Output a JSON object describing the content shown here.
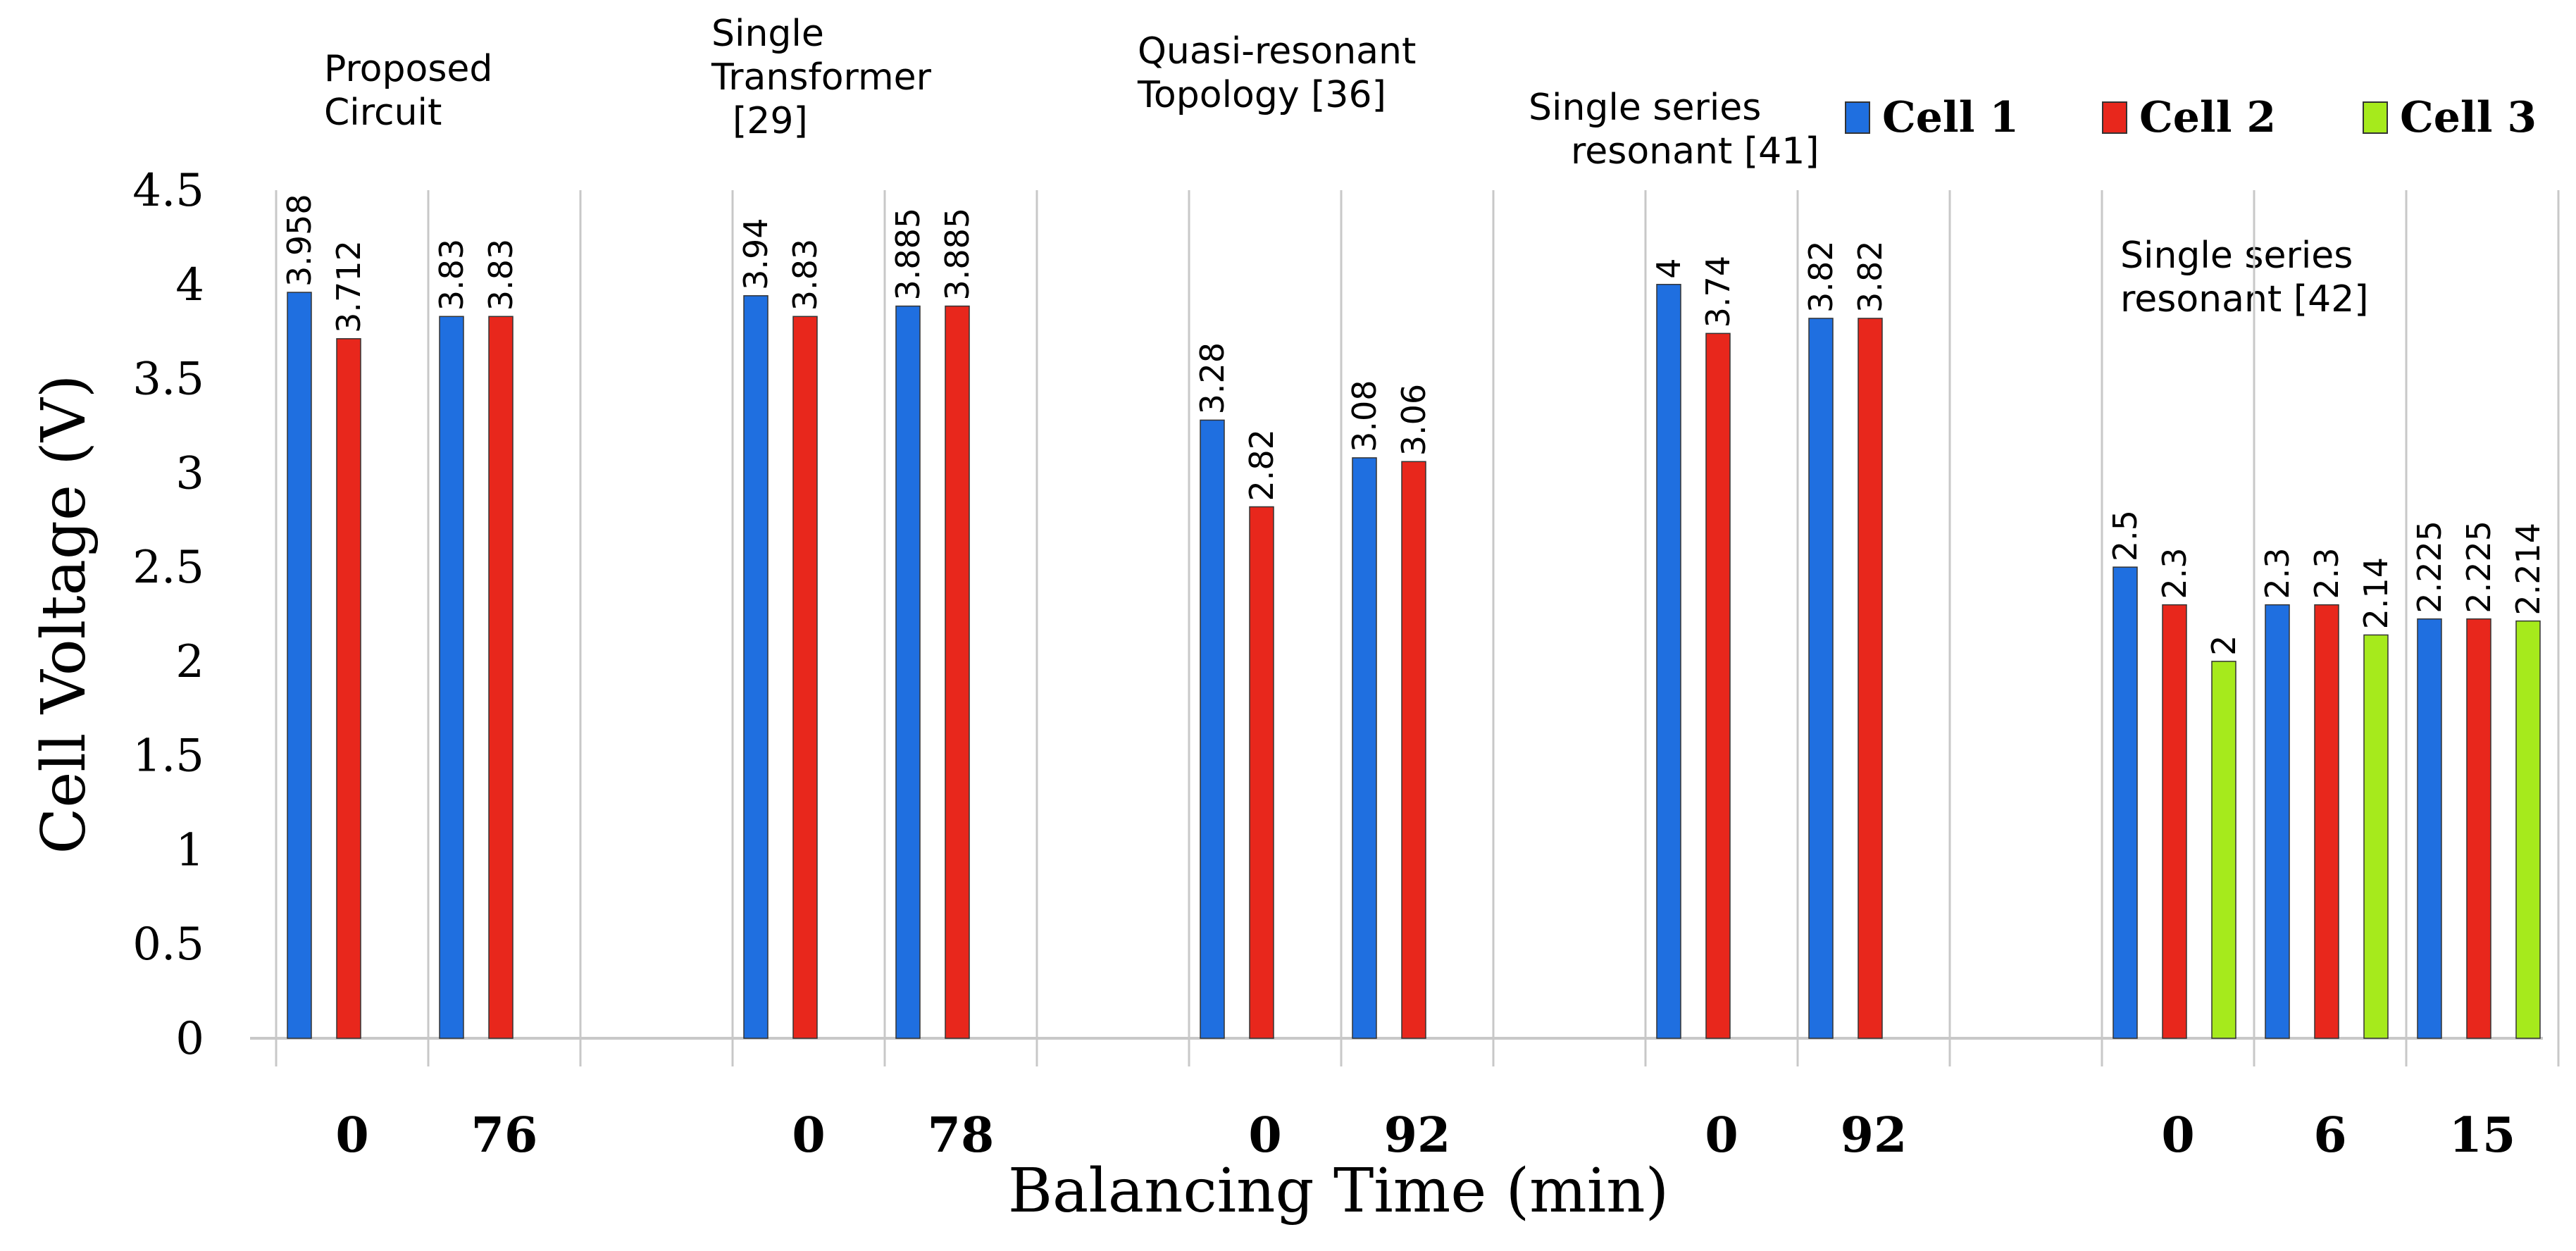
{
  "chart_data": {
    "type": "bar",
    "title": "",
    "xlabel": "Balancing Time (min)",
    "ylabel": "Cell Voltage (V)",
    "ylim": [
      0,
      4.5
    ],
    "yticks": [
      "0",
      "0.5",
      "1",
      "1.5",
      "2",
      "2.5",
      "3",
      "3.5",
      "4",
      "4.5"
    ],
    "grid": "vertical separators between time categories",
    "legend": {
      "position": "top-right",
      "entries": [
        {
          "name": "Cell 1",
          "color": "#1f6fe0"
        },
        {
          "name": "Cell 2",
          "color": "#e8271c"
        },
        {
          "name": "Cell 3",
          "color": "#a6ea1c"
        }
      ]
    },
    "groups": [
      {
        "label_lines": [
          "Proposed",
          "Circuit"
        ],
        "categories": [
          {
            "label": "0",
            "values": [
              3.958,
              3.712
            ],
            "value_labels": [
              "3.958",
              "3.712"
            ]
          },
          {
            "label": "76",
            "values": [
              3.83,
              3.83
            ],
            "value_labels": [
              "3.83",
              "3.83"
            ]
          }
        ]
      },
      {
        "label_lines": [
          "Single",
          "Transformer",
          "[29]"
        ],
        "categories": [
          {
            "label": "0",
            "values": [
              3.94,
              3.83
            ],
            "value_labels": [
              "3.94",
              "3.83"
            ]
          },
          {
            "label": "78",
            "values": [
              3.885,
              3.885
            ],
            "value_labels": [
              "3.885",
              "3.885"
            ]
          }
        ]
      },
      {
        "label_lines": [
          "Quasi-resonant",
          "Topology [36]"
        ],
        "categories": [
          {
            "label": "0",
            "values": [
              3.28,
              2.82
            ],
            "value_labels": [
              "3.28",
              "2.82"
            ]
          },
          {
            "label": "92",
            "values": [
              3.08,
              3.06
            ],
            "value_labels": [
              "3.08",
              "3.06"
            ]
          }
        ]
      },
      {
        "label_lines": [
          "Single series",
          "resonant [41]"
        ],
        "categories": [
          {
            "label": "0",
            "values": [
              4,
              3.74
            ],
            "value_labels": [
              "4",
              "3.74"
            ]
          },
          {
            "label": "92",
            "values": [
              3.82,
              3.82
            ],
            "value_labels": [
              "3.82",
              "3.82"
            ]
          }
        ]
      },
      {
        "label_lines": [
          "Single series",
          "resonant [42]"
        ],
        "categories": [
          {
            "label": "0",
            "values": [
              2.5,
              2.3,
              2
            ],
            "value_labels": [
              "2.5",
              "2.3",
              "2"
            ]
          },
          {
            "label": "6",
            "values": [
              2.3,
              2.3,
              2.14
            ],
            "value_labels": [
              "2.3",
              "2.3",
              "2.14"
            ]
          },
          {
            "label": "15",
            "values": [
              2.225,
              2.225,
              2.214
            ],
            "value_labels": [
              "2.225",
              "2.225",
              "2.214"
            ]
          }
        ]
      }
    ]
  }
}
